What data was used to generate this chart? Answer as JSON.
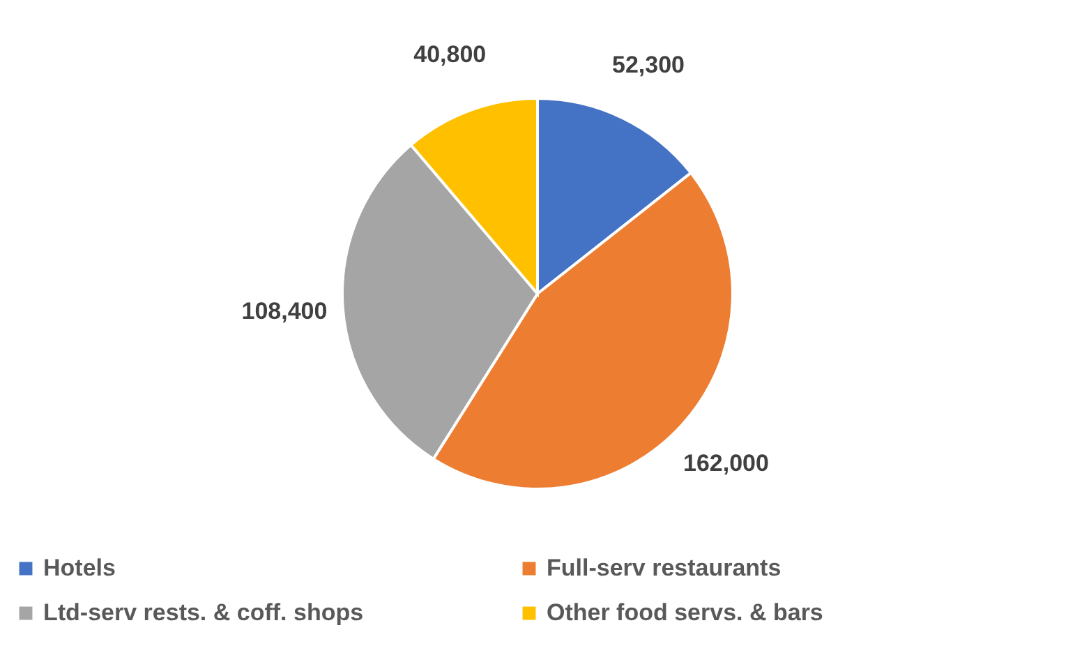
{
  "chart_data": {
    "type": "pie",
    "categories": [
      "Hotels",
      "Full-serv restaurants",
      "Ltd-serv rests. & coff. shops",
      "Other food servs. & bars"
    ],
    "values": [
      52300,
      162000,
      108400,
      40800
    ],
    "colors": [
      "#4472c4",
      "#ed7d31",
      "#a5a5a5",
      "#ffc000"
    ],
    "value_labels": [
      "52,300",
      "162,000",
      "108,400",
      "40,800"
    ],
    "legend": "bottom"
  }
}
